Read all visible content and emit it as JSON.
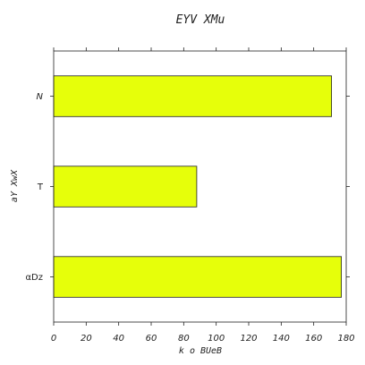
{
  "chart_data": {
    "type": "bar",
    "orientation": "horizontal",
    "title": "EYV XMu",
    "xlabel": "k o BUeB",
    "ylabel": "aY XwX",
    "categories": [
      "N",
      "T",
      "αDz"
    ],
    "values": [
      171,
      88,
      177
    ],
    "xlim": [
      0,
      180
    ],
    "xticks": [
      0,
      20,
      40,
      60,
      80,
      100,
      120,
      140,
      160,
      180
    ],
    "bar_color": "#e6ff0a",
    "grid": false,
    "legend": "none"
  }
}
